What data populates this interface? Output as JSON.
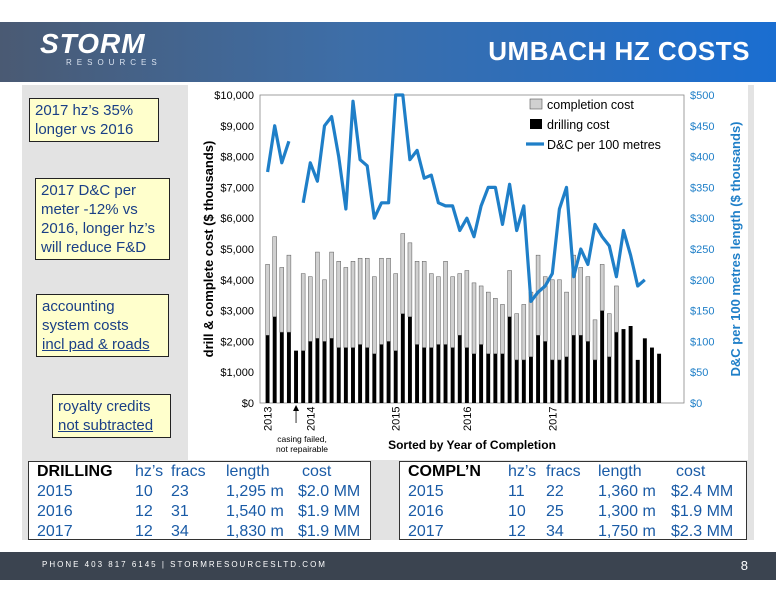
{
  "header": {
    "logo_main": "STORM",
    "logo_sub": "RESOURCES",
    "title": "UMBACH HZ COSTS"
  },
  "notes": [
    {
      "lines": [
        "2017 hz’s 35%",
        "longer vs 2016"
      ]
    },
    {
      "lines": [
        "2017 D&C per",
        "meter -12% vs",
        "2016, longer hz’s",
        "will reduce F&D"
      ]
    },
    {
      "lines": [
        "accounting",
        "system costs",
        "incl pad & roads"
      ]
    },
    {
      "lines": [
        "royalty credits",
        "not subtracted"
      ]
    }
  ],
  "chart_data": {
    "type": "bar",
    "ylabel": "drill & complete cost ($ thousands)",
    "y2label": "D&C per 100 metres length ($ thousands)",
    "xlabel": "Sorted by Year of Completion",
    "ylim": [
      0,
      10000
    ],
    "y2lim": [
      0,
      500
    ],
    "yticks": [
      "$0",
      "$1,000",
      "$2,000",
      "$3,000",
      "$4,000",
      "$5,000",
      "$6,000",
      "$7,000",
      "$8,000",
      "$9,000",
      "$10,000"
    ],
    "y2ticks": [
      "$0",
      "$50",
      "$100",
      "$150",
      "$200",
      "$250",
      "$300",
      "$350",
      "$400",
      "$450",
      "$500"
    ],
    "year_labels": [
      {
        "label": "2013",
        "index": 0
      },
      {
        "label": "2014",
        "index": 6
      },
      {
        "label": "2015",
        "index": 18
      },
      {
        "label": "2016",
        "index": 28
      },
      {
        "label": "2017",
        "index": 40
      }
    ],
    "annotation": {
      "lines": [
        "casing failed,",
        "not repairable"
      ],
      "index": 4
    },
    "legend": [
      "completion cost",
      "drilling cost",
      "D&C per 100 metres"
    ],
    "legend_position": "top-right",
    "colors": {
      "completion": "#d0d0d0",
      "drilling": "#000000",
      "line": "#1f7fc8"
    },
    "series": [
      {
        "name": "completion cost",
        "values": [
          2300,
          2600,
          2100,
          2500,
          0,
          2500,
          2100,
          2800,
          2000,
          2800,
          2800,
          2600,
          2800,
          2800,
          2900,
          2500,
          2800,
          2700,
          2500,
          2600,
          2400,
          2700,
          2800,
          2400,
          2200,
          2700,
          2300,
          2000,
          2500,
          2300,
          1900,
          2000,
          1800,
          1600,
          1500,
          1500,
          1800,
          2100,
          2600,
          2100,
          2600,
          2600,
          2100,
          2600,
          2200,
          2100,
          1300,
          1500,
          1400,
          1500,
          0,
          0,
          0,
          0,
          0,
          0,
          0,
          0,
          0
        ]
      },
      {
        "name": "drilling cost",
        "values": [
          2200,
          2800,
          2300,
          2300,
          1700,
          1700,
          2000,
          2100,
          2000,
          2100,
          1800,
          1800,
          1800,
          1900,
          1800,
          1600,
          1900,
          2000,
          1700,
          2900,
          2800,
          1900,
          1800,
          1800,
          1900,
          1900,
          1800,
          2200,
          1800,
          1600,
          1900,
          1600,
          1600,
          1600,
          2800,
          1400,
          1400,
          1500,
          2200,
          2000,
          1400,
          1400,
          1500,
          2200,
          2200,
          2000,
          1400,
          3000,
          1500,
          2300,
          2400,
          2500,
          1400,
          2100,
          1800,
          1600,
          0,
          0,
          0
        ]
      },
      {
        "name": "D&C per 100 metres",
        "values": [
          375,
          450,
          390,
          425,
          null,
          325,
          390,
          360,
          450,
          465,
          400,
          315,
          490,
          395,
          385,
          300,
          325,
          325,
          500,
          500,
          395,
          410,
          365,
          370,
          325,
          320,
          320,
          280,
          300,
          270,
          320,
          350,
          350,
          290,
          355,
          280,
          320,
          165,
          180,
          190,
          210,
          315,
          350,
          205,
          250,
          225,
          290,
          270,
          255,
          205,
          280,
          240,
          190,
          200
        ]
      }
    ]
  },
  "drilling_table": {
    "headers": [
      "DRILLING",
      "hz’s",
      "fracs",
      "length",
      "cost"
    ],
    "rows": [
      [
        "2015",
        "10",
        "23",
        "1,295 m",
        "$2.0 MM"
      ],
      [
        "2016",
        "12",
        "31",
        "1,540 m",
        "$1.9 MM"
      ],
      [
        "2017",
        "12",
        "34",
        "1,830 m",
        "$1.9 MM"
      ]
    ]
  },
  "compl_table": {
    "headers": [
      "COMPL’N",
      "hz’s",
      "fracs",
      "length",
      "cost"
    ],
    "rows": [
      [
        "2015",
        "11",
        "22",
        "1,360 m",
        "$2.4 MM"
      ],
      [
        "2016",
        "10",
        "25",
        "1,300 m",
        "$1.9 MM"
      ],
      [
        "2017",
        "12",
        "34",
        "1,750 m",
        "$2.3 MM"
      ]
    ]
  },
  "footer": {
    "text": "PHONE 403 817 6145   |   STORMRESOURCESLTD.COM",
    "page": "8"
  }
}
